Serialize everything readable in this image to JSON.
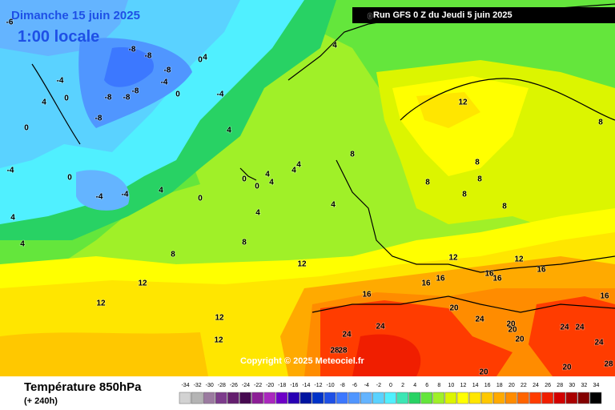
{
  "header": {
    "valid_date": "Dimanche 15 juin 2025",
    "local_time": "1:00 locale",
    "run": "Run GFS 0 Z du Jeudi 5 juin 2025"
  },
  "copyright": "Copyright © 2025 Meteociel.fr",
  "footer": {
    "title": "Température 850hPa",
    "lead": "(+ 240h)"
  },
  "scale": {
    "values": [
      -34,
      -32,
      -30,
      -28,
      -26,
      -24,
      -22,
      -20,
      -18,
      -16,
      -14,
      -12,
      -10,
      -8,
      -6,
      -4,
      -2,
      0,
      2,
      4,
      6,
      8,
      10,
      12,
      14,
      16,
      18,
      20,
      22,
      24,
      26,
      28,
      30,
      32,
      34
    ],
    "colors": [
      "#d2d2d2",
      "#b4b4b4",
      "#9b7ba0",
      "#7d3c8c",
      "#641e6e",
      "#460a50",
      "#8c1e96",
      "#aa28be",
      "#6e00c8",
      "#2800b4",
      "#0014a0",
      "#0032c8",
      "#1e50e6",
      "#3c78ff",
      "#5096ff",
      "#64b4ff",
      "#5ad2ff",
      "#50f0ff",
      "#3ce6b4",
      "#28d264",
      "#64e63c",
      "#a0f028",
      "#dcf500",
      "#ffff00",
      "#ffe600",
      "#ffc800",
      "#ffaa00",
      "#ff8c00",
      "#ff6400",
      "#ff3c00",
      "#f01e00",
      "#d20000",
      "#aa0000",
      "#820000",
      "#000000"
    ]
  },
  "contour_labels": [
    -6,
    0,
    -8,
    -8,
    -8,
    -8,
    -8,
    -8,
    -8,
    -4,
    0,
    4,
    0,
    -4,
    -4,
    4,
    0,
    0,
    -4,
    0,
    -4,
    -4,
    4,
    0,
    4,
    4,
    4,
    4,
    12,
    8,
    8,
    0,
    0,
    4,
    4,
    4,
    4,
    4,
    4,
    8,
    8,
    12,
    12,
    12,
    8,
    8,
    8,
    8,
    8,
    12,
    16,
    12,
    16,
    16,
    16,
    16,
    16,
    20,
    24,
    24,
    24,
    20,
    20,
    20,
    24,
    24,
    24,
    28,
    28,
    12,
    12,
    20,
    20,
    28,
    16
  ]
}
